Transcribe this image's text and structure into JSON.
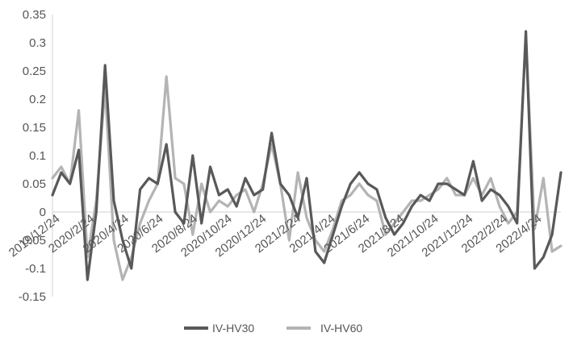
{
  "chart_data": {
    "type": "line",
    "title": "",
    "xlabel": "",
    "ylabel": "",
    "ylim": [
      -0.15,
      0.35
    ],
    "y_ticks": [
      "0.35",
      "0.3",
      "0.25",
      "0.2",
      "0.15",
      "0.1",
      "0.05",
      "0",
      "-0.05",
      "-0.1",
      "-0.15"
    ],
    "x_ticks": [
      "2019/12/24",
      "2020/2/24",
      "2020/4/24",
      "2020/6/24",
      "2020/8/24",
      "2020/10/24",
      "2020/12/24",
      "2021/2/24",
      "2021/4/24",
      "2021/6/24",
      "2021/8/24",
      "2021/10/24",
      "2021/12/24",
      "2022/2/24",
      "2022/4/24"
    ],
    "grid": false,
    "legend_position": "bottom",
    "x": [
      "2019/12/24",
      "2020/1/10",
      "2020/1/24",
      "2020/2/10",
      "2020/2/24",
      "2020/3/10",
      "2020/3/24",
      "2020/4/10",
      "2020/4/24",
      "2020/5/10",
      "2020/5/24",
      "2020/6/10",
      "2020/6/24",
      "2020/7/10",
      "2020/7/24",
      "2020/8/10",
      "2020/8/24",
      "2020/9/10",
      "2020/9/24",
      "2020/10/10",
      "2020/10/24",
      "2020/11/10",
      "2020/11/24",
      "2020/12/10",
      "2020/12/24",
      "2021/1/10",
      "2021/1/24",
      "2021/2/10",
      "2021/2/24",
      "2021/3/10",
      "2021/3/24",
      "2021/4/10",
      "2021/4/24",
      "2021/5/10",
      "2021/5/24",
      "2021/6/10",
      "2021/6/24",
      "2021/7/10",
      "2021/7/24",
      "2021/8/10",
      "2021/8/24",
      "2021/9/10",
      "2021/9/24",
      "2021/10/10",
      "2021/10/24",
      "2021/11/10",
      "2021/11/24",
      "2021/12/10",
      "2021/12/24",
      "2022/1/10",
      "2022/1/24",
      "2022/2/10",
      "2022/2/24",
      "2022/3/10",
      "2022/3/24",
      "2022/4/10",
      "2022/4/24",
      "2022/5/10",
      "2022/5/24"
    ],
    "series": [
      {
        "name": "IV-HV30",
        "color": "#595959",
        "values": [
          0.03,
          0.07,
          0.05,
          0.11,
          -0.12,
          0.0,
          0.26,
          0.02,
          -0.05,
          -0.1,
          0.04,
          0.06,
          0.05,
          0.12,
          0.0,
          -0.02,
          0.1,
          -0.02,
          0.08,
          0.03,
          0.04,
          0.01,
          0.06,
          0.03,
          0.04,
          0.14,
          0.05,
          0.03,
          -0.01,
          0.06,
          -0.07,
          -0.09,
          -0.04,
          0.01,
          0.05,
          0.07,
          0.05,
          0.04,
          -0.01,
          -0.04,
          -0.02,
          0.01,
          0.03,
          0.02,
          0.05,
          0.05,
          0.04,
          0.03,
          0.09,
          0.02,
          0.04,
          0.03,
          0.01,
          -0.02,
          0.32,
          -0.1,
          -0.08,
          -0.04,
          0.07
        ]
      },
      {
        "name": "IV-HV60",
        "color": "#b4b4b4",
        "values": [
          0.06,
          0.08,
          0.05,
          0.18,
          -0.08,
          0.02,
          0.22,
          -0.05,
          -0.12,
          -0.08,
          -0.02,
          0.02,
          0.05,
          0.24,
          0.06,
          0.05,
          -0.04,
          0.05,
          0.0,
          0.02,
          0.01,
          0.03,
          0.04,
          0.0,
          0.05,
          0.12,
          0.05,
          -0.05,
          0.07,
          -0.01,
          -0.05,
          -0.07,
          -0.03,
          0.02,
          0.03,
          0.05,
          0.03,
          0.02,
          -0.04,
          -0.02,
          0.0,
          0.02,
          0.02,
          0.03,
          0.04,
          0.06,
          0.03,
          0.03,
          0.06,
          0.03,
          0.06,
          0.01,
          -0.02,
          0.0,
          0.31,
          -0.03,
          0.06,
          -0.07,
          -0.06
        ]
      }
    ]
  }
}
